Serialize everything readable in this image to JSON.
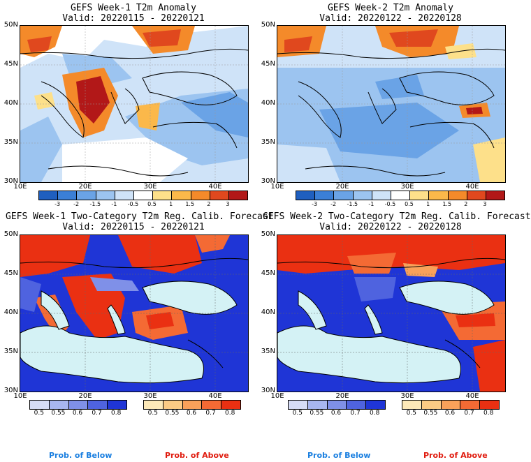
{
  "panels": [
    {
      "title_line1": "GEFS Week-1 T2m Anomaly",
      "title_line2": "Valid: 20220115 - 20220121"
    },
    {
      "title_line1": "GEFS Week-2 T2m Anomaly",
      "title_line2": "Valid: 20220122 - 20220128"
    },
    {
      "title_line1": "GEFS Week-1 Two-Category T2m Reg. Calib. Forecast",
      "title_line2": "Valid: 20220115 - 20220121"
    },
    {
      "title_line1": "GEFS Week-2 Two-Category T2m Reg. Calib. Forecast",
      "title_line2": "Valid: 20220122 - 20220128"
    }
  ],
  "lat_labels": [
    "50N",
    "45N",
    "40N",
    "35N",
    "30N"
  ],
  "lon_labels": [
    "10E",
    "20E",
    "30E",
    "40E"
  ],
  "anomaly_colorbar": {
    "ticks": [
      "-3",
      "-2",
      "-1.5",
      "-1",
      "-0.5",
      "0.5",
      "1",
      "1.5",
      "2",
      "3"
    ],
    "colors": [
      "#1f5fbf",
      "#3b7fd6",
      "#6aa3e6",
      "#9cc4f0",
      "#cfe3f8",
      "#ffffff",
      "#fde08a",
      "#fbb84a",
      "#f48a2a",
      "#e0481e",
      "#b21818"
    ]
  },
  "prob_below": {
    "ticks": [
      "0.5",
      "0.55",
      "0.6",
      "0.7",
      "0.8"
    ],
    "colors": [
      "#d6dcf5",
      "#a8b6ef",
      "#7f90e8",
      "#4f63df",
      "#1f35d6"
    ],
    "label": "Prob. of Below"
  },
  "prob_above": {
    "ticks": [
      "0.5",
      "0.55",
      "0.6",
      "0.7",
      "0.8"
    ],
    "colors": [
      "#fde9b8",
      "#fccb85",
      "#f9a15a",
      "#f46a34",
      "#ea3012"
    ],
    "label": "Prob. of Above"
  },
  "colors": {
    "below_label": "#1a7fe0",
    "above_label": "#e01b0e",
    "sea_fill": "#d4f2f5"
  }
}
